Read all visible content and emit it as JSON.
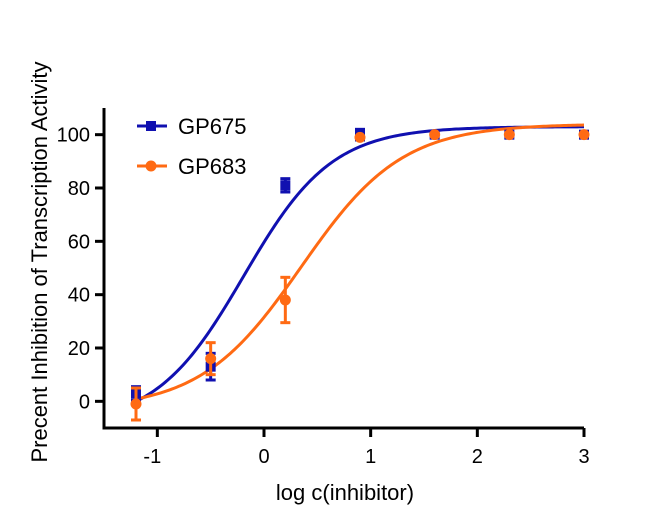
{
  "chart_data": {
    "type": "scatter",
    "title": "",
    "xlabel": "log c(inhibitor)",
    "ylabel": "Precent Inhibition of Transcription Activity",
    "xlim": [
      -1.5,
      3.0
    ],
    "ylim": [
      -10,
      110
    ],
    "x_ticks": [
      -1,
      0,
      1,
      2,
      3
    ],
    "y_ticks": [
      0,
      20,
      40,
      60,
      80,
      100
    ],
    "legend_position": "top-left",
    "grid": false,
    "series": [
      {
        "name": "GP675",
        "color": "#1010b0",
        "marker": "square",
        "x": [
          -1.2,
          -0.5,
          0.2,
          0.9,
          1.6,
          2.3,
          3.0
        ],
        "y": [
          3,
          13,
          81,
          100,
          100,
          100,
          100
        ],
        "err": [
          2.5,
          5,
          2.5,
          2,
          1,
          1,
          1
        ],
        "fit": {
          "bottom": -9,
          "top": 103,
          "logEC50": -0.19,
          "hillslope": 1.05
        }
      },
      {
        "name": "GP683",
        "color": "#ff6a13",
        "marker": "circle",
        "x": [
          -1.2,
          -0.5,
          0.2,
          0.9,
          1.6,
          2.3,
          3.0
        ],
        "y": [
          -1,
          16,
          38,
          99,
          100,
          100,
          100
        ],
        "err": [
          6,
          6,
          8.5,
          1,
          1,
          1,
          1
        ],
        "fit": {
          "bottom": -3,
          "top": 104,
          "logEC50": 0.35,
          "hillslope": 0.92
        }
      }
    ]
  }
}
